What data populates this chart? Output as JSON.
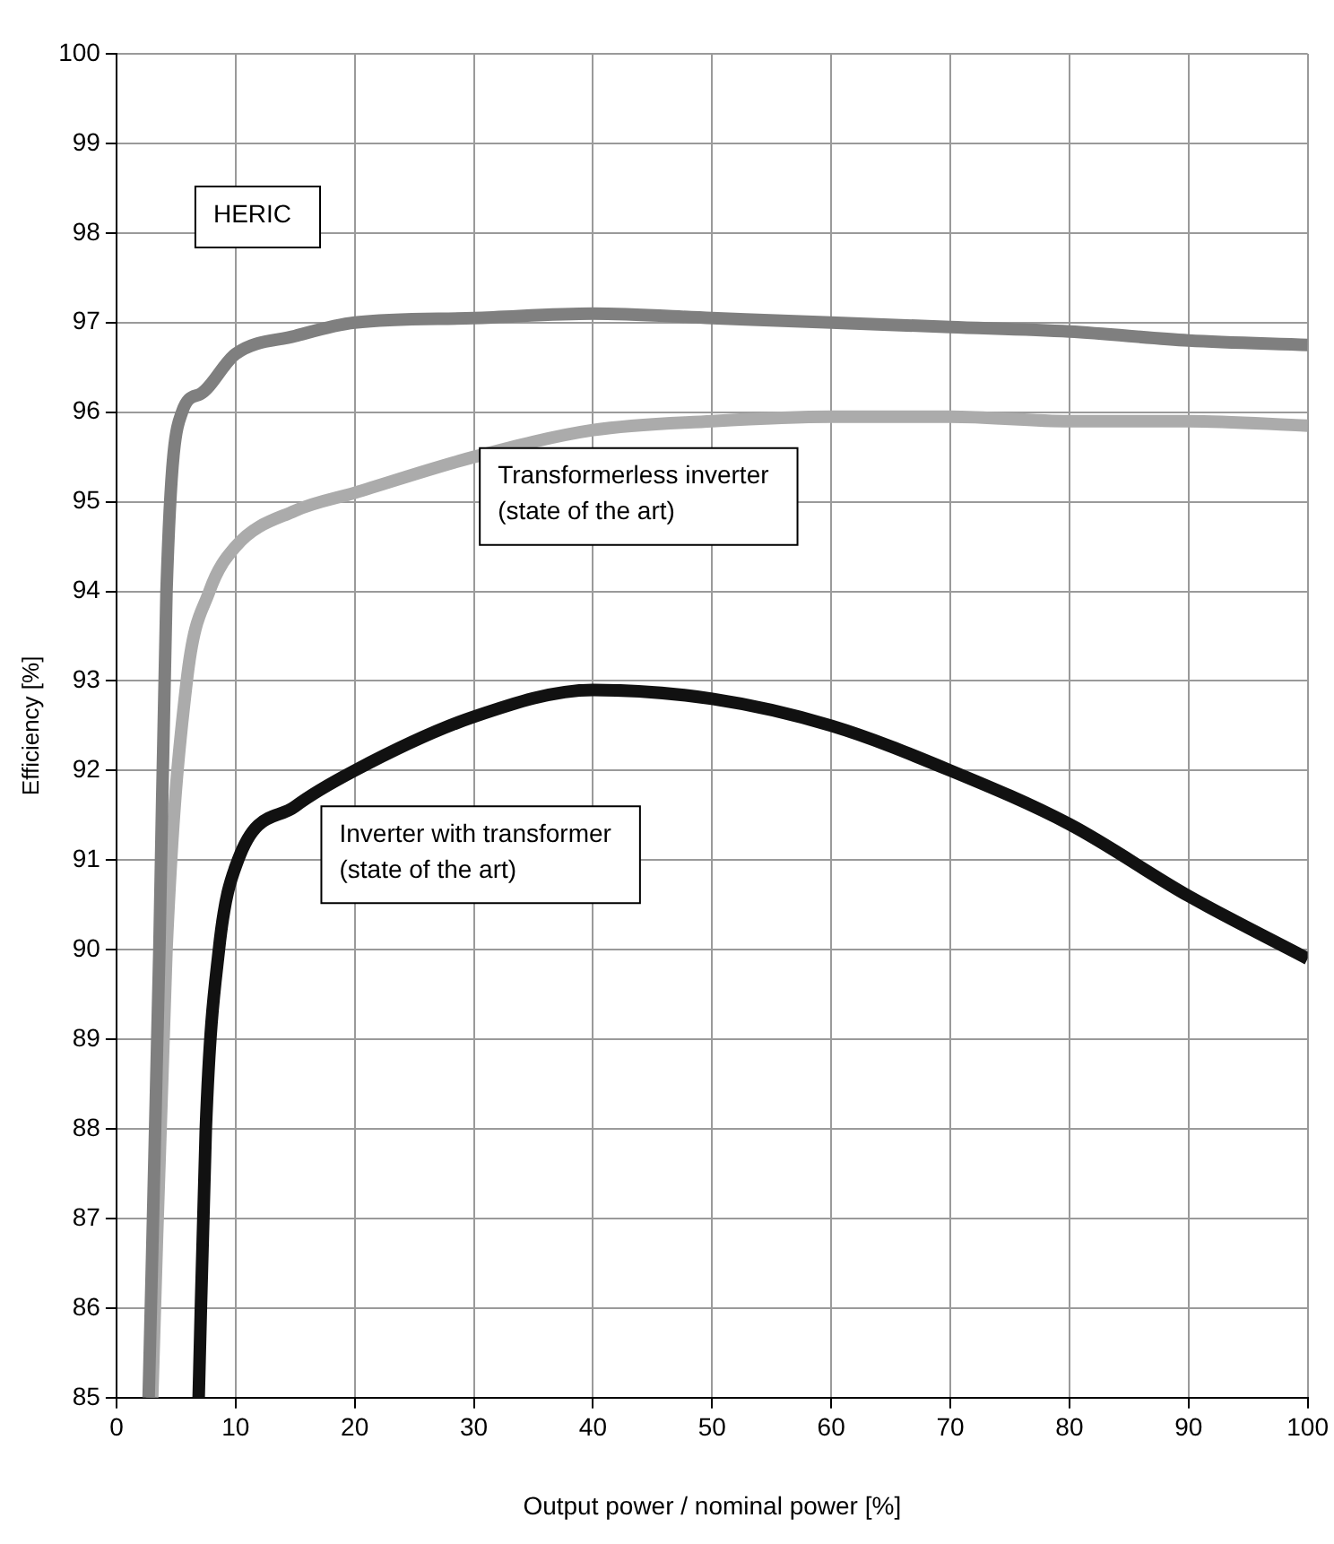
{
  "chart_data": {
    "type": "line",
    "xlabel": "Output power / nominal power [%]",
    "ylabel": "Efficiency [%]",
    "xlim": [
      0,
      100
    ],
    "xticks": [
      0,
      10,
      20,
      30,
      40,
      50,
      60,
      70,
      80,
      90,
      100
    ],
    "ylim": [
      85,
      100
    ],
    "yticks": [
      85,
      86,
      87,
      88,
      89,
      90,
      91,
      92,
      93,
      94,
      95,
      96,
      97,
      98,
      99,
      100
    ],
    "grid": true,
    "legend": false,
    "marker": "none",
    "line_style": "solid",
    "series": [
      {
        "color": "#7f7f7f",
        "x": [
          2.7,
          3.6,
          4.2,
          5.5,
          7,
          10,
          15,
          20,
          30,
          40,
          50,
          60,
          70,
          80,
          90,
          100
        ],
        "values": [
          85,
          90,
          94,
          96,
          96.2,
          96.65,
          96.85,
          97,
          97.05,
          97.1,
          97.05,
          97,
          96.95,
          96.9,
          96.8,
          96.75
        ]
      },
      {
        "color": "#ababab",
        "x": [
          3,
          4.2,
          5.9,
          7.8,
          10,
          15,
          20,
          30,
          40,
          50,
          60,
          70,
          80,
          90,
          100
        ],
        "values": [
          85,
          90,
          93,
          94,
          94.5,
          94.9,
          95.1,
          95.5,
          95.8,
          95.9,
          95.95,
          95.95,
          95.9,
          95.9,
          95.85
        ]
      },
      {
        "color": "#111111",
        "x": [
          6.9,
          7.5,
          8.6,
          10.2,
          15,
          20,
          30,
          40,
          50,
          60,
          70,
          80,
          90,
          100
        ],
        "values": [
          85,
          88,
          90,
          91,
          91.6,
          92,
          92.6,
          92.9,
          92.8,
          92.5,
          92,
          91.4,
          90.6,
          89.9
        ]
      }
    ],
    "annotations": [
      "HERIC",
      {
        "text": "Transformerless inverter\n(state of the art)",
        "x": 30.5,
        "y": 95.6
      },
      {
        "text": "Inverter with transformer\n(state of the art)",
        "x": 17.2,
        "y": 91.6
      }
    ]
  }
}
